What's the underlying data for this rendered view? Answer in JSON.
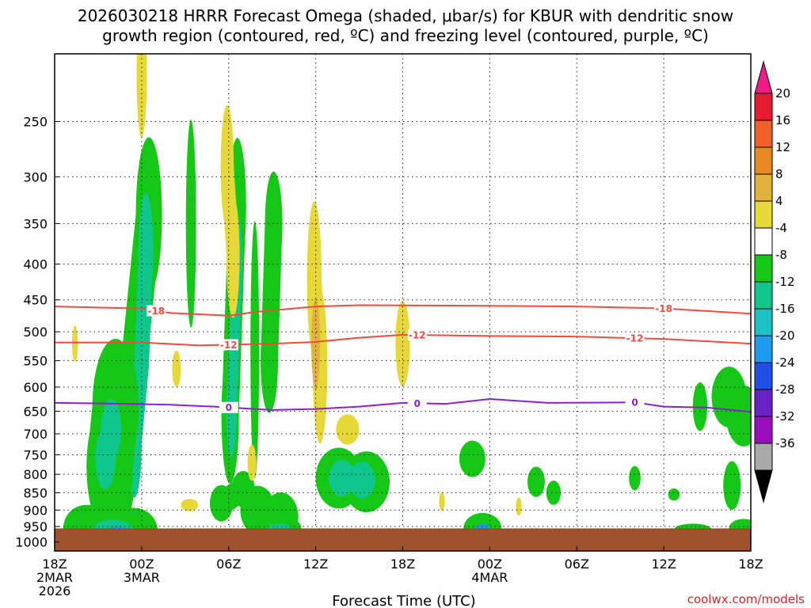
{
  "chart_data": {
    "type": "heatmap",
    "title_line1": "2026030218 HRRR Forecast Omega (shaded, μbar/s) for KBUR with dendritic snow",
    "title_line2": "growth region (contoured, red, ºC) and freezing level (contoured, purple, ºC)",
    "xlabel": "Forecast Time (UTC)",
    "credit": "coolwx.com/models",
    "x_range": [
      "2026-03-02 18Z",
      "2026-03-04 18Z"
    ],
    "x_ticks": [
      {
        "h": 0,
        "l1": "18Z",
        "l2": "2MAR",
        "l3": "2026"
      },
      {
        "h": 6,
        "l1": "00Z",
        "l2": "3MAR",
        "l3": ""
      },
      {
        "h": 12,
        "l1": "06Z",
        "l2": "",
        "l3": ""
      },
      {
        "h": 18,
        "l1": "12Z",
        "l2": "",
        "l3": ""
      },
      {
        "h": 24,
        "l1": "18Z",
        "l2": "",
        "l3": ""
      },
      {
        "h": 30,
        "l1": "00Z",
        "l2": "4MAR",
        "l3": ""
      },
      {
        "h": 36,
        "l1": "06Z",
        "l2": "",
        "l3": ""
      },
      {
        "h": 42,
        "l1": "12Z",
        "l2": "",
        "l3": ""
      },
      {
        "h": 48,
        "l1": "18Z",
        "l2": "",
        "l3": ""
      }
    ],
    "ylabel": "",
    "y_ticks": [
      250,
      300,
      350,
      400,
      450,
      500,
      550,
      600,
      650,
      700,
      750,
      800,
      850,
      900,
      950,
      1000
    ],
    "y_range_hPa": [
      200,
      1030
    ],
    "y_scale": "log",
    "ground_level_hPa": 980,
    "grid": true,
    "colorbar": {
      "labels": [
        "20",
        "16",
        "12",
        "8",
        "4",
        "-4",
        "-8",
        "-12",
        "-16",
        "-20",
        "-24",
        "-28",
        "-32",
        "-36"
      ],
      "colors": [
        "#e51c2f",
        "#f0602a",
        "#e88a22",
        "#e1b33a",
        "#e5d837",
        "#ffffff",
        "#15c816",
        "#0fc78a",
        "#1bc2c4",
        "#1e9aee",
        "#1f4fe6",
        "#6a22c8",
        "#9a0fbd",
        "#a9a9a9"
      ],
      "top_color": "#ee1a86",
      "bottom_color": "#000000"
    },
    "contours": [
      {
        "label": "-18",
        "color": "#f04a42",
        "points": [
          [
            0,
            460
          ],
          [
            6,
            463
          ],
          [
            8,
            470
          ],
          [
            12,
            474
          ],
          [
            14,
            468
          ],
          [
            18,
            460
          ],
          [
            21,
            458
          ],
          [
            30,
            459
          ],
          [
            36,
            460
          ],
          [
            42,
            463
          ],
          [
            48,
            471
          ]
        ],
        "label_at": [
          7,
          42
        ]
      },
      {
        "label": "-12",
        "color": "#f04a42",
        "points": [
          [
            0,
            518
          ],
          [
            6,
            518
          ],
          [
            10,
            523
          ],
          [
            15,
            520
          ],
          [
            18,
            517
          ],
          [
            21,
            510
          ],
          [
            24,
            505
          ],
          [
            30,
            507
          ],
          [
            36,
            508
          ],
          [
            42,
            512
          ],
          [
            48,
            520
          ]
        ],
        "label_at": [
          12,
          25,
          40
        ]
      },
      {
        "label": "0",
        "color": "#8e1fcf",
        "points": [
          [
            0,
            632
          ],
          [
            5,
            634
          ],
          [
            8,
            636
          ],
          [
            11,
            640
          ],
          [
            15,
            647
          ],
          [
            18,
            645
          ],
          [
            21,
            640
          ],
          [
            24,
            632
          ],
          [
            27,
            634
          ],
          [
            30,
            624
          ],
          [
            34,
            632
          ],
          [
            40,
            631
          ],
          [
            42,
            640
          ],
          [
            45,
            642
          ],
          [
            48,
            651
          ]
        ],
        "label_at": [
          12,
          25,
          40
        ]
      }
    ],
    "omega_cells": [
      {
        "h": [
          6.5,
          5.6,
          4.8
        ],
        "p": [
          340,
          520,
          720
        ],
        "rx": 0.9,
        "color": "#15c816",
        "pw": 0.25
      },
      {
        "h": [
          6.3,
          6.0,
          5.5
        ],
        "p": [
          380,
          560,
          720
        ],
        "rx": 0.5,
        "color": "#0fc78a",
        "pw": 0.18
      },
      {
        "h": [
          4.2,
          3.8
        ],
        "p": [
          640,
          780
        ],
        "rx": 1.6,
        "color": "#15c816",
        "pw": 0.22
      },
      {
        "h": [
          3.9,
          3.5
        ],
        "p": [
          690,
          760
        ],
        "rx": 0.7,
        "color": "#0fc78a",
        "pw": 0.1
      },
      {
        "h": [
          12.6,
          12.1
        ],
        "p": [
          330,
          660
        ],
        "rx": 0.6,
        "color": "#15c816",
        "pw": 0.22
      },
      {
        "h": [
          12.6,
          12.2
        ],
        "p": [
          400,
          650
        ],
        "rx": 0.35,
        "color": "#0fc78a",
        "pw": 0.15
      },
      {
        "h": [
          15.1,
          14.8
        ],
        "p": [
          350,
          550
        ],
        "rx": 0.6,
        "color": "#15c816",
        "pw": 0.17
      },
      {
        "h": [
          9.4
        ],
        "p": [
          350
        ],
        "rx": 0.35,
        "color": "#15c816",
        "pw": 0.33
      },
      {
        "h": [
          13.8
        ],
        "p": [
          530
        ],
        "rx": 0.3,
        "color": "#15c816",
        "pw": 0.4
      },
      {
        "h": [
          19.6,
          21.5
        ],
        "p": [
          810,
          820
        ],
        "rx": 1.6,
        "color": "#15c816",
        "pw": 0.1
      },
      {
        "h": [
          19.8,
          21.2
        ],
        "p": [
          810,
          815
        ],
        "rx": 0.9,
        "color": "#0fc78a",
        "pw": 0.06
      },
      {
        "h": [
          14.0,
          15.6
        ],
        "p": [
          900,
          920
        ],
        "rx": 1.2,
        "color": "#15c816",
        "pw": 0.08
      },
      {
        "h": [
          2.2,
          5.5
        ],
        "p": [
          955,
          965
        ],
        "rx": 1.6,
        "color": "#15c816",
        "pw": 0.05
      },
      {
        "h": [
          4.0
        ],
        "p": [
          962
        ],
        "rx": 1.4,
        "color": "#0fc78a",
        "pw": 0.035
      },
      {
        "h": [
          4.3
        ],
        "p": [
          968
        ],
        "rx": 0.7,
        "color": "#1e9aee",
        "pw": 0.02
      },
      {
        "h": [
          4.4
        ],
        "p": [
          970
        ],
        "rx": 0.35,
        "color": "#1f4fe6",
        "pw": 0.012
      },
      {
        "h": [
          15.5
        ],
        "p": [
          955
        ],
        "rx": 1.5,
        "color": "#15c816",
        "pw": 0.04
      },
      {
        "h": [
          15.5
        ],
        "p": [
          960
        ],
        "rx": 0.9,
        "color": "#0fc78a",
        "pw": 0.02
      },
      {
        "h": [
          29.5
        ],
        "p": [
          955
        ],
        "rx": 1.3,
        "color": "#15c816",
        "pw": 0.05
      },
      {
        "h": [
          29.5
        ],
        "p": [
          960
        ],
        "rx": 0.5,
        "color": "#1e9aee",
        "pw": 0.02
      },
      {
        "h": [
          28.8
        ],
        "p": [
          760
        ],
        "rx": 0.9,
        "color": "#15c816",
        "pw": 0.06
      },
      {
        "h": [
          44.5
        ],
        "p": [
          640
        ],
        "rx": 0.5,
        "color": "#15c816",
        "pw": 0.08
      },
      {
        "h": [
          46.5,
          47.5
        ],
        "p": [
          620,
          660
        ],
        "rx": 1.2,
        "color": "#15c816",
        "pw": 0.1
      },
      {
        "h": [
          46.7
        ],
        "p": [
          830
        ],
        "rx": 0.6,
        "color": "#15c816",
        "pw": 0.08
      },
      {
        "h": [
          33.2
        ],
        "p": [
          820
        ],
        "rx": 0.6,
        "color": "#15c816",
        "pw": 0.05
      },
      {
        "h": [
          34.4
        ],
        "p": [
          850
        ],
        "rx": 0.5,
        "color": "#15c816",
        "pw": 0.04
      },
      {
        "h": [
          40
        ],
        "p": [
          810
        ],
        "rx": 0.4,
        "color": "#15c816",
        "pw": 0.04
      },
      {
        "h": [
          42.7
        ],
        "p": [
          855
        ],
        "rx": 0.4,
        "color": "#15c816",
        "pw": 0.02
      },
      {
        "h": [
          11.5,
          13.0
        ],
        "p": [
          880,
          840
        ],
        "rx": 0.8,
        "color": "#15c816",
        "pw": 0.06
      },
      {
        "h": [
          47.5
        ],
        "p": [
          955
        ],
        "rx": 1.0,
        "color": "#15c816",
        "pw": 0.03
      },
      {
        "h": [
          44.0
        ],
        "p": [
          960
        ],
        "rx": 1.3,
        "color": "#15c816",
        "pw": 0.02
      }
    ],
    "pos_cells": [
      {
        "h": [
          6.0
        ],
        "p": [
          215
        ],
        "rx": 0.35,
        "color": "#e5d837",
        "pw": 0.2
      },
      {
        "h": [
          11.9,
          12.3
        ],
        "p": [
          290,
          390
        ],
        "rx": 0.45,
        "color": "#e5d837",
        "pw": 0.2
      },
      {
        "h": [
          17.9,
          18.3
        ],
        "p": [
          420,
          560
        ],
        "rx": 0.5,
        "color": "#e5d837",
        "pw": 0.25
      },
      {
        "h": [
          18.0
        ],
        "p": [
          520
        ],
        "rx": 0.3,
        "color": "#e1b33a",
        "pw": 0.15
      },
      {
        "h": [
          24.0
        ],
        "p": [
          520
        ],
        "rx": 0.5,
        "color": "#e5d837",
        "pw": 0.14
      },
      {
        "h": [
          20.2
        ],
        "p": [
          690
        ],
        "rx": 0.8,
        "color": "#e5d837",
        "pw": 0.05
      },
      {
        "h": [
          1.4
        ],
        "p": [
          520
        ],
        "rx": 0.2,
        "color": "#e5d837",
        "pw": 0.06
      },
      {
        "h": [
          8.4
        ],
        "p": [
          565
        ],
        "rx": 0.3,
        "color": "#e5d837",
        "pw": 0.06
      },
      {
        "h": [
          13.6
        ],
        "p": [
          770
        ],
        "rx": 0.3,
        "color": "#e5d837",
        "pw": 0.06
      },
      {
        "h": [
          9.3
        ],
        "p": [
          885
        ],
        "rx": 0.6,
        "color": "#e5d837",
        "pw": 0.02
      },
      {
        "h": [
          26.7
        ],
        "p": [
          875
        ],
        "rx": 0.2,
        "color": "#e5d837",
        "pw": 0.03
      },
      {
        "h": [
          32.0
        ],
        "p": [
          890
        ],
        "rx": 0.2,
        "color": "#e5d837",
        "pw": 0.03
      }
    ]
  }
}
